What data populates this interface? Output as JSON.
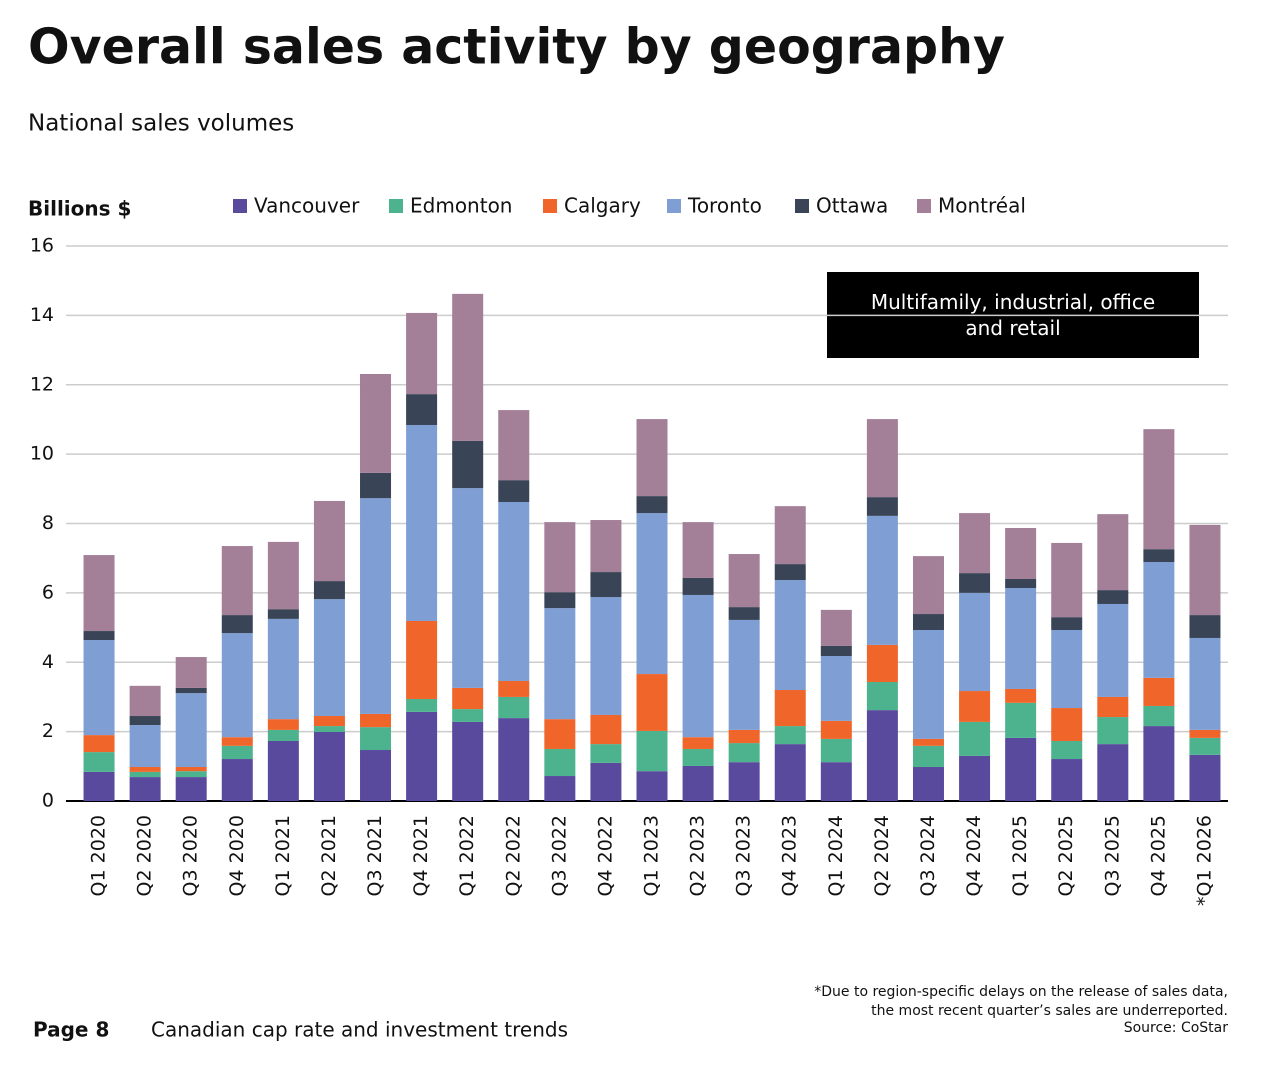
{
  "header": {
    "title": "Overall sales activity by geography",
    "subtitle": "National sales volumes"
  },
  "chart_data": {
    "type": "stacked_bar",
    "y_label": "Billions $",
    "annotation": "Multifamily, industrial, office and retail",
    "categories": [
      "Q1 2020",
      "Q2 2020",
      "Q3 2020",
      "Q4 2020",
      "Q1 2021",
      "Q2 2021",
      "Q3 2021",
      "Q4 2021",
      "Q1 2022",
      "Q2 2022",
      "Q3 2022",
      "Q4 2022",
      "Q1 2023",
      "Q2 2023",
      "Q3 2023",
      "Q4 2023",
      "Q1 2024",
      "Q2 2024",
      "Q3 2024",
      "Q4 2024",
      "Q1 2025",
      "Q2 2025",
      "Q3 2025",
      "Q4 2025",
      "*Q1 2026"
    ],
    "series": [
      {
        "name": "Vancouver",
        "color": "#5a4a9e",
        "values": [
          0.84,
          0.69,
          0.69,
          1.21,
          1.73,
          1.99,
          1.47,
          2.57,
          2.28,
          2.39,
          0.72,
          1.1,
          0.86,
          1.01,
          1.12,
          1.64,
          1.12,
          2.62,
          0.98,
          1.3,
          1.82,
          1.21,
          1.64,
          2.16,
          1.33
        ]
      },
      {
        "name": "Edmonton",
        "color": "#4db38e",
        "values": [
          0.57,
          0.15,
          0.17,
          0.38,
          0.32,
          0.17,
          0.66,
          0.37,
          0.37,
          0.61,
          0.78,
          0.54,
          1.16,
          0.49,
          0.55,
          0.52,
          0.67,
          0.81,
          0.61,
          0.98,
          1.01,
          0.52,
          0.78,
          0.58,
          0.49
        ]
      },
      {
        "name": "Calgary",
        "color": "#f0652a",
        "values": [
          0.49,
          0.14,
          0.12,
          0.25,
          0.31,
          0.29,
          0.38,
          2.25,
          0.61,
          0.46,
          0.86,
          0.84,
          1.64,
          0.34,
          0.38,
          1.04,
          0.52,
          1.07,
          0.2,
          0.89,
          0.4,
          0.95,
          0.58,
          0.81,
          0.23
        ]
      },
      {
        "name": "Toronto",
        "color": "#7f9ed4",
        "values": [
          2.74,
          1.21,
          2.13,
          3.0,
          2.89,
          3.37,
          6.22,
          5.65,
          5.76,
          5.16,
          3.2,
          3.4,
          4.64,
          4.1,
          3.17,
          3.17,
          1.87,
          3.72,
          3.14,
          2.83,
          2.91,
          2.25,
          2.68,
          3.34,
          2.65
        ]
      },
      {
        "name": "Ottawa",
        "color": "#394556",
        "values": [
          0.26,
          0.26,
          0.15,
          0.52,
          0.28,
          0.52,
          0.73,
          0.89,
          1.36,
          0.63,
          0.46,
          0.72,
          0.49,
          0.49,
          0.37,
          0.46,
          0.29,
          0.54,
          0.46,
          0.57,
          0.26,
          0.37,
          0.4,
          0.37,
          0.66
        ]
      },
      {
        "name": "Montréal",
        "color": "#a37f98",
        "values": [
          2.19,
          0.87,
          0.89,
          1.99,
          1.94,
          2.31,
          2.85,
          2.34,
          4.24,
          2.02,
          2.02,
          1.5,
          2.22,
          1.61,
          1.53,
          1.67,
          1.04,
          2.25,
          1.67,
          1.73,
          1.47,
          2.14,
          2.19,
          3.46,
          2.6
        ]
      }
    ],
    "ylim": [
      0,
      16
    ],
    "yticks": [
      0,
      2,
      4,
      6,
      8,
      10,
      12,
      14,
      16
    ],
    "grid": true
  },
  "footer": {
    "note": [
      "*Due to region-specific delays on the release of sales data,",
      "the most recent quarter’s sales are underreported."
    ],
    "source": "Source: CoStar",
    "page": "Page 8",
    "document": "Canadian cap rate and investment trends"
  }
}
